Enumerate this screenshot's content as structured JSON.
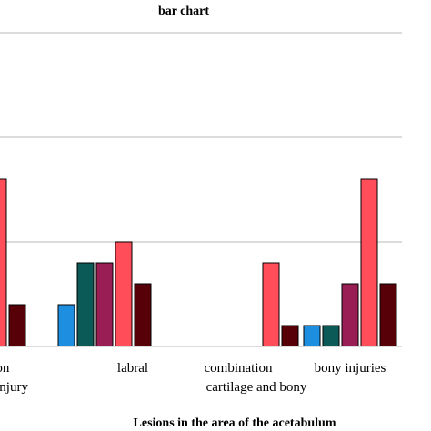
{
  "chart_data": {
    "type": "bar",
    "title": "bar chart",
    "xlabel": "Lesions in the area of the acetabulum",
    "ylabel": "",
    "grid": true,
    "categories": [
      [
        "cation",
        "mitant injury"
      ],
      [
        "labral"
      ],
      [
        "combination",
        "cartilage and bony"
      ],
      [
        "bony injuries"
      ]
    ],
    "ylim": [
      0,
      15
    ],
    "series": [
      {
        "color": "#1e8fe0",
        "values": [
          null,
          2,
          null,
          1
        ]
      },
      {
        "color": "#0b5a58",
        "values": [
          null,
          4,
          null,
          1
        ]
      },
      {
        "color": "#991e55",
        "values": [
          null,
          4,
          null,
          3
        ]
      },
      {
        "color": "#ff4d5a",
        "values": [
          8,
          5,
          4,
          8
        ]
      },
      {
        "color": "#570008",
        "values": [
          2,
          3,
          1,
          3
        ]
      }
    ]
  }
}
